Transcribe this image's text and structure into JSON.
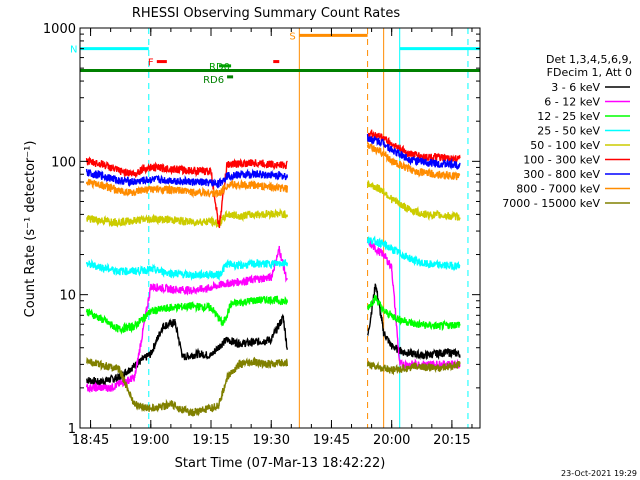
{
  "chart_data": {
    "type": "line",
    "title": "RHESSI Observing Summary Count Rates",
    "xlabel": "Start Time (07-Mar-13 18:42:22)",
    "ylabel": "Count Rate (s⁻¹ detector⁻¹)",
    "yscale": "log",
    "ylim": [
      1,
      1000
    ],
    "xlim": [
      "18:42:22",
      "20:22:00"
    ],
    "x_ticks": [
      "18:45",
      "19:00",
      "19:15",
      "19:30",
      "19:45",
      "20:00",
      "20:15"
    ],
    "y_ticks": [
      "1",
      "10",
      "100",
      "1000"
    ],
    "legend": {
      "header": [
        "Det 1,3,4,5,6,9,",
        "FDecim 1, Att 0"
      ],
      "placement": "right"
    },
    "series": [
      {
        "name": "3 - 6 keV",
        "color": "#000000",
        "points": [
          [
            "18:44",
            2.3
          ],
          [
            "18:47",
            2.2
          ],
          [
            "18:52",
            2.4
          ],
          [
            "19:00",
            3.6
          ],
          [
            "19:03",
            5.8
          ],
          [
            "19:06",
            6.2
          ],
          [
            "19:08",
            3.4
          ],
          [
            "19:12",
            3.6
          ],
          [
            "19:15",
            3.5
          ],
          [
            "19:17",
            4.1
          ],
          [
            "19:19",
            4.6
          ],
          [
            "19:22",
            4.3
          ],
          [
            "19:26",
            4.4
          ],
          [
            "19:30",
            4.6
          ],
          [
            "19:33",
            6.8
          ],
          [
            "19:34",
            3.9
          ],
          [
            "19:54",
            4.8
          ],
          [
            "19:56",
            12.0
          ],
          [
            "19:58",
            5.2
          ],
          [
            "20:00",
            4.1
          ],
          [
            "20:03",
            3.7
          ],
          [
            "20:08",
            3.5
          ],
          [
            "20:14",
            3.7
          ],
          [
            "20:17",
            3.6
          ]
        ]
      },
      {
        "name": "6 - 12 keV",
        "color": "#ff00ff",
        "points": [
          [
            "18:44",
            2.0
          ],
          [
            "18:50",
            2.0
          ],
          [
            "18:56",
            2.4
          ],
          [
            "19:00",
            11.5
          ],
          [
            "19:05",
            11.0
          ],
          [
            "19:10",
            10.8
          ],
          [
            "19:14",
            11.1
          ],
          [
            "19:18",
            12.0
          ],
          [
            "19:22",
            12.5
          ],
          [
            "19:26",
            13.0
          ],
          [
            "19:30",
            13.5
          ],
          [
            "19:32",
            22.0
          ],
          [
            "19:34",
            12.5
          ],
          [
            "19:54",
            25.0
          ],
          [
            "19:56",
            22.0
          ],
          [
            "19:58",
            20.0
          ],
          [
            "20:00",
            16.0
          ],
          [
            "20:02",
            3.0
          ],
          [
            "20:10",
            3.0
          ],
          [
            "20:17",
            3.0
          ]
        ]
      },
      {
        "name": "12 - 25 keV",
        "color": "#00ff00",
        "points": [
          [
            "18:44",
            7.5
          ],
          [
            "18:48",
            6.5
          ],
          [
            "18:52",
            5.5
          ],
          [
            "18:56",
            5.8
          ],
          [
            "19:00",
            7.5
          ],
          [
            "19:05",
            8.0
          ],
          [
            "19:10",
            8.2
          ],
          [
            "19:15",
            8.0
          ],
          [
            "19:18",
            6.0
          ],
          [
            "19:20",
            8.5
          ],
          [
            "19:25",
            9.0
          ],
          [
            "19:30",
            9.2
          ],
          [
            "19:34",
            8.8
          ],
          [
            "19:54",
            8.0
          ],
          [
            "19:56",
            9.5
          ],
          [
            "19:58",
            7.5
          ],
          [
            "20:02",
            6.5
          ],
          [
            "20:06",
            6.0
          ],
          [
            "20:12",
            5.8
          ],
          [
            "20:17",
            6.0
          ]
        ]
      },
      {
        "name": "25 - 50 keV",
        "color": "#00ffff",
        "points": [
          [
            "18:44",
            17.0
          ],
          [
            "18:48",
            16.0
          ],
          [
            "18:52",
            15.0
          ],
          [
            "18:56",
            15.0
          ],
          [
            "19:00",
            15.5
          ],
          [
            "19:05",
            14.5
          ],
          [
            "19:10",
            14.0
          ],
          [
            "19:15",
            14.2
          ],
          [
            "19:17",
            14.0
          ],
          [
            "19:19",
            17.0
          ],
          [
            "19:22",
            16.5
          ],
          [
            "19:26",
            17.0
          ],
          [
            "19:30",
            17.0
          ],
          [
            "19:34",
            17.5
          ],
          [
            "19:54",
            26.0
          ],
          [
            "19:58",
            24.0
          ],
          [
            "20:00",
            22.0
          ],
          [
            "20:04",
            19.0
          ],
          [
            "20:08",
            17.0
          ],
          [
            "20:14",
            16.5
          ],
          [
            "20:17",
            16.5
          ]
        ]
      },
      {
        "name": "50 - 100 keV",
        "color": "#cccc00",
        "points": [
          [
            "18:44",
            37.0
          ],
          [
            "18:48",
            36.0
          ],
          [
            "18:52",
            35.0
          ],
          [
            "18:56",
            36.0
          ],
          [
            "19:00",
            37.0
          ],
          [
            "19:05",
            36.5
          ],
          [
            "19:10",
            35.0
          ],
          [
            "19:15",
            35.5
          ],
          [
            "19:17",
            34.0
          ],
          [
            "19:19",
            40.0
          ],
          [
            "19:22",
            39.0
          ],
          [
            "19:26",
            40.0
          ],
          [
            "19:30",
            40.5
          ],
          [
            "19:34",
            40.0
          ],
          [
            "19:54",
            68.0
          ],
          [
            "19:58",
            60.0
          ],
          [
            "20:00",
            52.0
          ],
          [
            "20:04",
            44.0
          ],
          [
            "20:08",
            40.0
          ],
          [
            "20:14",
            39.0
          ],
          [
            "20:17",
            38.5
          ]
        ]
      },
      {
        "name": "100 - 300 keV",
        "color": "#ff0000",
        "points": [
          [
            "18:44",
            100.0
          ],
          [
            "18:48",
            95.0
          ],
          [
            "18:52",
            85.0
          ],
          [
            "18:56",
            80.0
          ],
          [
            "18:58",
            88.0
          ],
          [
            "19:00",
            90.0
          ],
          [
            "19:05",
            88.0
          ],
          [
            "19:10",
            85.0
          ],
          [
            "19:15",
            84.0
          ],
          [
            "19:17",
            32.0
          ],
          [
            "19:19",
            95.0
          ],
          [
            "19:22",
            96.0
          ],
          [
            "19:26",
            97.0
          ],
          [
            "19:30",
            95.0
          ],
          [
            "19:34",
            93.0
          ],
          [
            "19:54",
            165.0
          ],
          [
            "19:58",
            150.0
          ],
          [
            "20:00",
            135.0
          ],
          [
            "20:04",
            115.0
          ],
          [
            "20:08",
            108.0
          ],
          [
            "20:14",
            105.0
          ],
          [
            "20:17",
            104.0
          ]
        ]
      },
      {
        "name": "300 - 800 keV",
        "color": "#0000ff",
        "points": [
          [
            "18:44",
            82.0
          ],
          [
            "18:48",
            78.0
          ],
          [
            "18:52",
            72.0
          ],
          [
            "18:56",
            70.0
          ],
          [
            "19:00",
            73.0
          ],
          [
            "19:05",
            72.0
          ],
          [
            "19:10",
            70.0
          ],
          [
            "19:15",
            69.0
          ],
          [
            "19:17",
            68.0
          ],
          [
            "19:19",
            78.0
          ],
          [
            "19:22",
            79.0
          ],
          [
            "19:26",
            80.0
          ],
          [
            "19:30",
            79.0
          ],
          [
            "19:34",
            77.0
          ],
          [
            "19:54",
            150.0
          ],
          [
            "19:58",
            138.0
          ],
          [
            "20:00",
            122.0
          ],
          [
            "20:04",
            105.0
          ],
          [
            "20:08",
            98.0
          ],
          [
            "20:14",
            95.0
          ],
          [
            "20:17",
            94.0
          ]
        ]
      },
      {
        "name": "800 - 7000 keV",
        "color": "#ff8c00",
        "points": [
          [
            "18:44",
            70.0
          ],
          [
            "18:48",
            66.0
          ],
          [
            "18:52",
            60.0
          ],
          [
            "18:56",
            58.0
          ],
          [
            "19:00",
            62.0
          ],
          [
            "19:05",
            61.0
          ],
          [
            "19:10",
            59.0
          ],
          [
            "19:15",
            58.0
          ],
          [
            "19:17",
            57.0
          ],
          [
            "19:19",
            66.0
          ],
          [
            "19:22",
            66.5
          ],
          [
            "19:26",
            66.0
          ],
          [
            "19:30",
            64.0
          ],
          [
            "19:34",
            62.0
          ],
          [
            "19:54",
            130.0
          ],
          [
            "19:58",
            115.0
          ],
          [
            "20:00",
            100.0
          ],
          [
            "20:04",
            88.0
          ],
          [
            "20:08",
            82.0
          ],
          [
            "20:14",
            78.0
          ],
          [
            "20:17",
            77.0
          ]
        ]
      },
      {
        "name": "7000 - 15000 keV",
        "color": "#808000",
        "points": [
          [
            "18:44",
            3.2
          ],
          [
            "18:47",
            3.0
          ],
          [
            "18:52",
            2.8
          ],
          [
            "18:56",
            1.5
          ],
          [
            "19:00",
            1.4
          ],
          [
            "19:05",
            1.5
          ],
          [
            "19:10",
            1.3
          ],
          [
            "19:15",
            1.4
          ],
          [
            "19:17",
            1.5
          ],
          [
            "19:19",
            2.4
          ],
          [
            "19:22",
            3.0
          ],
          [
            "19:26",
            3.1
          ],
          [
            "19:30",
            3.0
          ],
          [
            "19:34",
            3.1
          ],
          [
            "19:54",
            3.0
          ],
          [
            "20:00",
            2.7
          ],
          [
            "20:06",
            2.9
          ],
          [
            "20:12",
            2.8
          ],
          [
            "20:17",
            3.0
          ]
        ]
      }
    ],
    "flag_bars": [
      {
        "label": "N",
        "color": "#00ffff",
        "y": 700,
        "segments": [
          [
            "18:42:22",
            "18:59:30"
          ],
          [
            "20:02:00",
            "20:22:00"
          ]
        ]
      },
      {
        "label": "F",
        "color": "#ff0000",
        "y": 560,
        "segments": [
          [
            "19:01:30",
            "19:04:00"
          ],
          [
            "19:30:30",
            "19:32:00"
          ]
        ]
      },
      {
        "label": "S",
        "color": "#ff8c00",
        "y": 880,
        "segments": [
          [
            "19:37:00",
            "19:54:00"
          ]
        ]
      },
      {
        "label": "RD0",
        "color": "#00a000",
        "y": 520,
        "segments": [
          [
            "19:17:00",
            "19:20:00"
          ]
        ]
      },
      {
        "label": "RD6",
        "color": "#008000",
        "y": 430,
        "segments": [
          [
            "19:19:00",
            "19:20:30"
          ]
        ]
      },
      {
        "label": "",
        "color": "#008000",
        "y": 480,
        "segments": [
          [
            "18:42:22",
            "20:22:00"
          ]
        ]
      }
    ],
    "vertical_markers": [
      {
        "time": "18:42:22",
        "color": "#00ffff",
        "style": "solid"
      },
      {
        "time": "18:59:30",
        "color": "#00ffff",
        "style": "dashed"
      },
      {
        "time": "19:37:00",
        "color": "#ff8c00",
        "style": "solid"
      },
      {
        "time": "19:54:00",
        "color": "#ff8c00",
        "style": "dashed"
      },
      {
        "time": "19:58:00",
        "color": "#ff8c00",
        "style": "solid"
      },
      {
        "time": "20:02:00",
        "color": "#00ffff",
        "style": "solid"
      },
      {
        "time": "20:19:00",
        "color": "#00ffff",
        "style": "dashed"
      }
    ]
  },
  "footer": {
    "timestamp": "23-Oct-2021 19:29"
  }
}
